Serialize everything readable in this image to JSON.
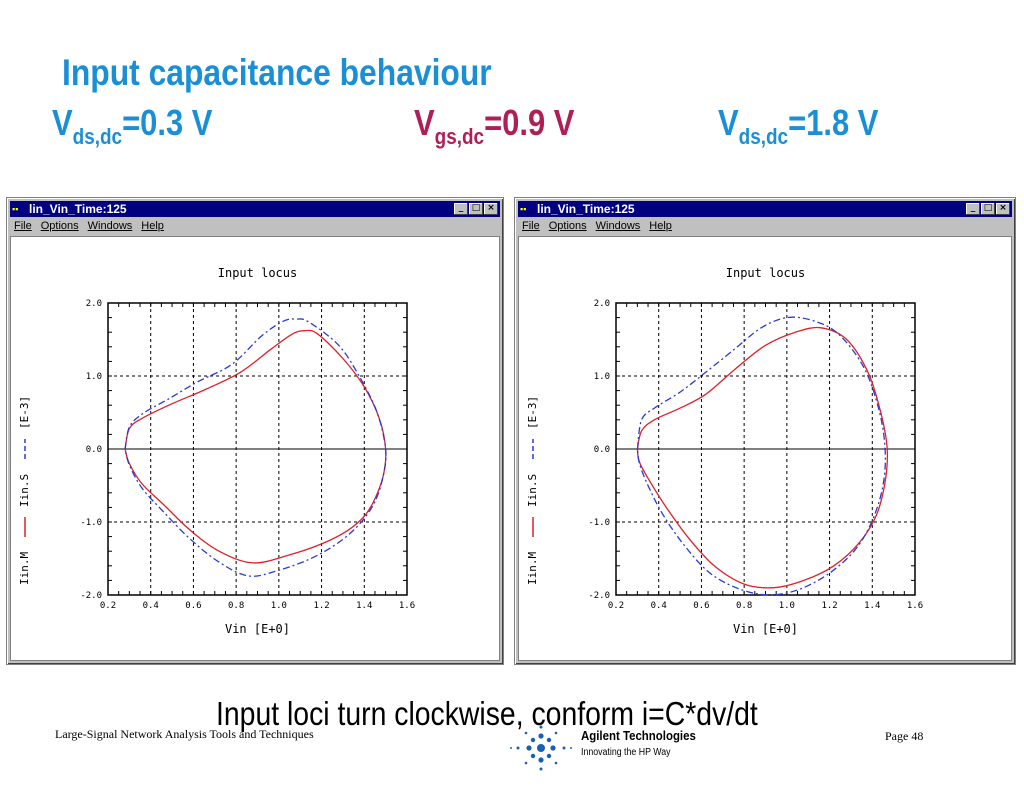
{
  "slide": {
    "title": "Input capacitance behaviour",
    "conditions": [
      {
        "symbol": "V",
        "sub": "ds,dc",
        "value": "=0.3 V",
        "color": "#1a8fd6"
      },
      {
        "symbol": "V",
        "sub": "gs,dc",
        "value": "=0.9 V",
        "color": "#b01e57"
      },
      {
        "symbol": "V",
        "sub": "ds,dc",
        "value": "=1.8 V",
        "color": "#1a8fd6"
      }
    ],
    "conclusion": "Input loci turn clockwise, conform i=C*dv/dt",
    "footer_left": "Large-Signal Network Analysis Tools and Techniques",
    "footer_page": "Page 48",
    "logo_name": "Agilent Technologies",
    "logo_tagline": "Innovating the HP Way"
  },
  "windows": [
    {
      "title": "lin_Vin_Time:125",
      "menu": [
        "File",
        "Options",
        "Windows",
        "Help"
      ],
      "buttons": [
        "_",
        "□",
        "×"
      ],
      "app_icon": "app-icon"
    },
    {
      "title": "lin_Vin_Time:125",
      "menu": [
        "File",
        "Options",
        "Windows",
        "Help"
      ],
      "buttons": [
        "_",
        "□",
        "×"
      ],
      "app_icon": "app-icon"
    }
  ],
  "chart_data": [
    {
      "type": "line",
      "title": "Input locus",
      "xlabel": "Vin   [E+0]",
      "ylabel_series": [
        "Iin.M",
        "Iin.S"
      ],
      "ylabel_unit": "[E-3]",
      "xlim": [
        0.2,
        1.6
      ],
      "ylim": [
        -2.0,
        2.0
      ],
      "xticks": [
        "0.2",
        "0.4",
        "0.6",
        "0.8",
        "1.0",
        "1.2",
        "1.4",
        "1.6"
      ],
      "yticks": [
        "2.0",
        "1.0",
        "0.0",
        "-1.0",
        "-2.0"
      ],
      "grid": true,
      "series": [
        {
          "name": "Iin.M",
          "color": "#e0202a",
          "dash": "solid",
          "x": [
            0.28,
            0.3,
            0.36,
            0.5,
            0.66,
            0.82,
            0.96,
            1.06,
            1.12,
            1.18,
            1.3,
            1.4,
            1.47,
            1.5,
            1.49,
            1.45,
            1.4,
            1.32,
            1.2,
            1.05,
            0.88,
            0.72,
            0.58,
            0.46,
            0.36,
            0.3,
            0.28
          ],
          "y": [
            0.0,
            0.28,
            0.42,
            0.62,
            0.82,
            1.05,
            1.36,
            1.57,
            1.62,
            1.58,
            1.24,
            0.85,
            0.42,
            0.0,
            -0.35,
            -0.68,
            -0.92,
            -1.12,
            -1.3,
            -1.45,
            -1.56,
            -1.4,
            -1.1,
            -0.76,
            -0.48,
            -0.2,
            0.0
          ]
        },
        {
          "name": "Iin.S",
          "color": "#2a3ad8",
          "dash": "dashed",
          "x": [
            0.28,
            0.3,
            0.36,
            0.48,
            0.62,
            0.78,
            0.92,
            1.02,
            1.08,
            1.14,
            1.28,
            1.38,
            1.46,
            1.5,
            1.49,
            1.45,
            1.38,
            1.28,
            1.15,
            1.0,
            0.86,
            0.72,
            0.58,
            0.46,
            0.36,
            0.3,
            0.28
          ],
          "y": [
            0.0,
            0.3,
            0.48,
            0.68,
            0.92,
            1.16,
            1.55,
            1.75,
            1.78,
            1.74,
            1.42,
            0.98,
            0.5,
            0.0,
            -0.35,
            -0.72,
            -1.02,
            -1.28,
            -1.5,
            -1.66,
            -1.74,
            -1.55,
            -1.22,
            -0.86,
            -0.54,
            -0.22,
            0.0
          ]
        }
      ]
    },
    {
      "type": "line",
      "title": "Input locus",
      "xlabel": "Vin   [E+0]",
      "ylabel_series": [
        "Iin.M",
        "Iin.S"
      ],
      "ylabel_unit": "[E-3]",
      "xlim": [
        0.2,
        1.6
      ],
      "ylim": [
        -2.0,
        2.0
      ],
      "xticks": [
        "0.2",
        "0.4",
        "0.6",
        "0.8",
        "1.0",
        "1.2",
        "1.4",
        "1.6"
      ],
      "yticks": [
        "2.0",
        "1.0",
        "0.0",
        "-1.0",
        "-2.0"
      ],
      "grid": true,
      "series": [
        {
          "name": "Iin.M",
          "color": "#e0202a",
          "dash": "solid",
          "x": [
            0.3,
            0.32,
            0.38,
            0.5,
            0.62,
            0.76,
            0.9,
            1.04,
            1.16,
            1.28,
            1.38,
            1.44,
            1.47,
            1.46,
            1.42,
            1.34,
            1.22,
            1.08,
            0.94,
            0.8,
            0.66,
            0.54,
            0.44,
            0.36,
            0.31,
            0.3
          ],
          "y": [
            0.0,
            0.25,
            0.4,
            0.56,
            0.75,
            1.1,
            1.42,
            1.6,
            1.66,
            1.5,
            1.05,
            0.5,
            0.0,
            -0.45,
            -0.9,
            -1.28,
            -1.6,
            -1.8,
            -1.9,
            -1.85,
            -1.6,
            -1.22,
            -0.82,
            -0.45,
            -0.18,
            0.0
          ]
        },
        {
          "name": "Iin.S",
          "color": "#2a3ad8",
          "dash": "dashed",
          "x": [
            0.3,
            0.32,
            0.38,
            0.5,
            0.62,
            0.76,
            0.88,
            1.0,
            1.12,
            1.24,
            1.36,
            1.43,
            1.46,
            1.45,
            1.4,
            1.32,
            1.2,
            1.06,
            0.92,
            0.78,
            0.64,
            0.52,
            0.42,
            0.35,
            0.31,
            0.3
          ],
          "y": [
            0.0,
            0.4,
            0.56,
            0.78,
            1.05,
            1.38,
            1.66,
            1.8,
            1.76,
            1.58,
            1.12,
            0.55,
            0.0,
            -0.5,
            -0.98,
            -1.38,
            -1.7,
            -1.92,
            -2.0,
            -1.92,
            -1.7,
            -1.32,
            -0.9,
            -0.5,
            -0.2,
            0.0
          ]
        }
      ]
    }
  ]
}
